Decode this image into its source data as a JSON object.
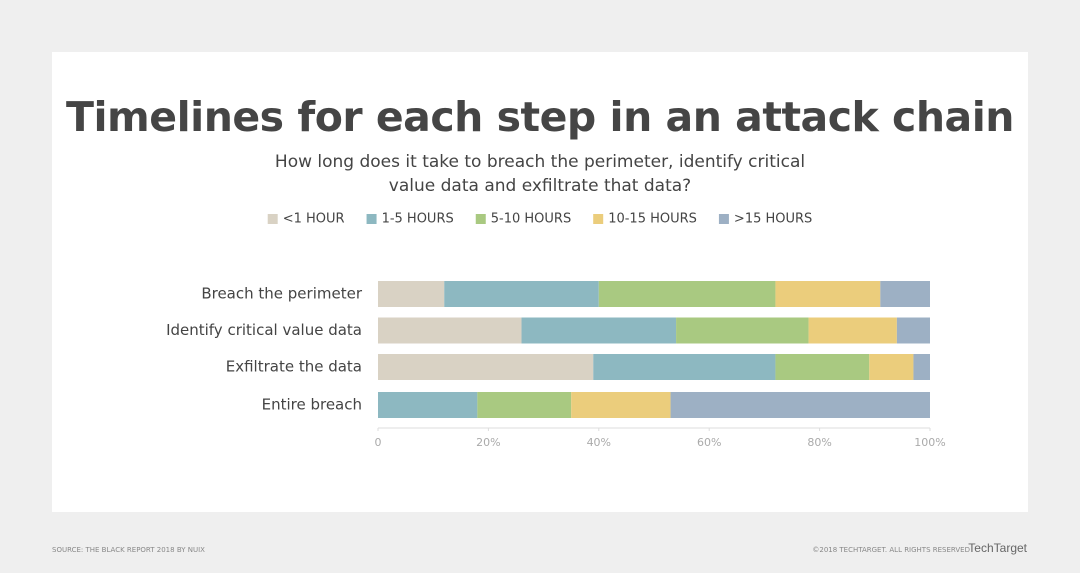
{
  "chart_data": {
    "type": "stacked-bar-horizontal",
    "title": "Timelines for each step in an attack chain",
    "subtitle": [
      "How long does it take to breach the perimeter, identify critical",
      "value data and exfiltrate that data?"
    ],
    "categories": [
      "Breach the perimeter",
      "Identify critical value data",
      "Exfiltrate the data",
      "Entire breach"
    ],
    "series": [
      {
        "name": "<1 HOUR",
        "color": "#d9d2c4",
        "values": [
          12,
          26,
          39,
          0
        ]
      },
      {
        "name": "1-5 HOURS",
        "color": "#8db8c1",
        "values": [
          28,
          28,
          33,
          18
        ]
      },
      {
        "name": "5-10 HOURS",
        "color": "#a9c981",
        "values": [
          32,
          24,
          17,
          17
        ]
      },
      {
        "name": "10-15 HOURS",
        "color": "#ebcd7c",
        "values": [
          19,
          16,
          8,
          18
        ]
      },
      {
        "name": ">15 HOURS",
        "color": "#9db0c4",
        "values": [
          9,
          6,
          3,
          47
        ]
      }
    ],
    "xlim": [
      0,
      100
    ],
    "xticks": [
      0,
      {
        "value": 20,
        "label": "20%"
      },
      {
        "value": 40,
        "label": "40%"
      },
      {
        "value": 60,
        "label": "60%"
      },
      {
        "value": 80,
        "label": "80%"
      },
      {
        "value": 100,
        "label": "100%"
      }
    ],
    "legend": "top"
  },
  "footer": {
    "source": "SOURCE: THE BLACK REPORT 2018 BY NUIX",
    "copyright": "©2018 TECHTARGET. ALL RIGHTS RESERVED",
    "logo": "TechTarget"
  }
}
